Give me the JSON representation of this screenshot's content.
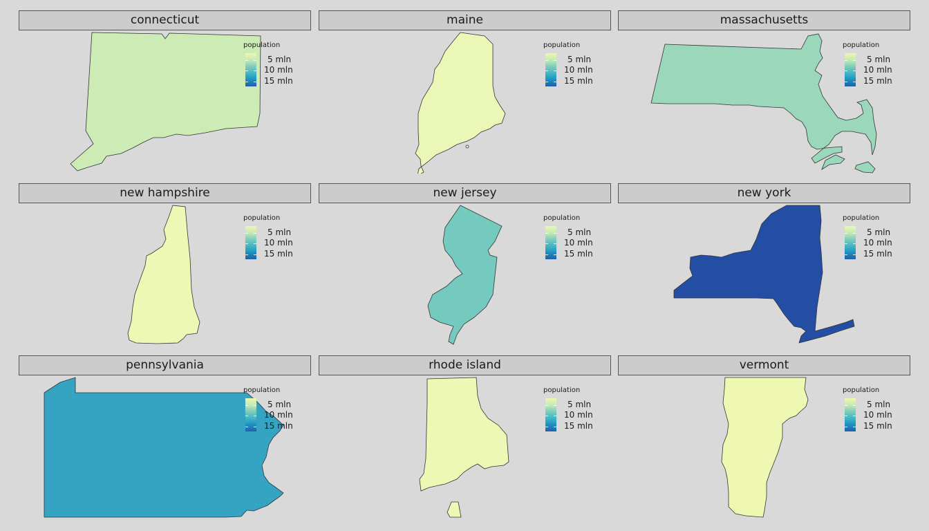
{
  "legend": {
    "title": "population",
    "labels": [
      "5 mln",
      "10 mln",
      "15 mln"
    ]
  },
  "colors": {
    "connecticut": "#cdebb4",
    "maine": "#ebf7b7",
    "massachusetts": "#9ad7bb",
    "new_hampshire": "#eef8b5",
    "new_jersey": "#75cac0",
    "new_york": "#234ea3",
    "pennsylvania": "#35a3c2",
    "rhode_island": "#ecf8b3",
    "vermont": "#eef8b3"
  },
  "panels": [
    {
      "id": "connecticut",
      "label": "connecticut",
      "population_mln": 3.6
    },
    {
      "id": "maine",
      "label": "maine",
      "population_mln": 1.3
    },
    {
      "id": "massachusetts",
      "label": "massachusetts",
      "population_mln": 6.9
    },
    {
      "id": "new_hampshire",
      "label": "new hampshire",
      "population_mln": 1.3
    },
    {
      "id": "new_jersey",
      "label": "new jersey",
      "population_mln": 8.9
    },
    {
      "id": "new_york",
      "label": "new york",
      "population_mln": 19.5
    },
    {
      "id": "pennsylvania",
      "label": "pennsylvania",
      "population_mln": 12.8
    },
    {
      "id": "rhode_island",
      "label": "rhode island",
      "population_mln": 1.1
    },
    {
      "id": "vermont",
      "label": "vermont",
      "population_mln": 0.6
    }
  ]
}
